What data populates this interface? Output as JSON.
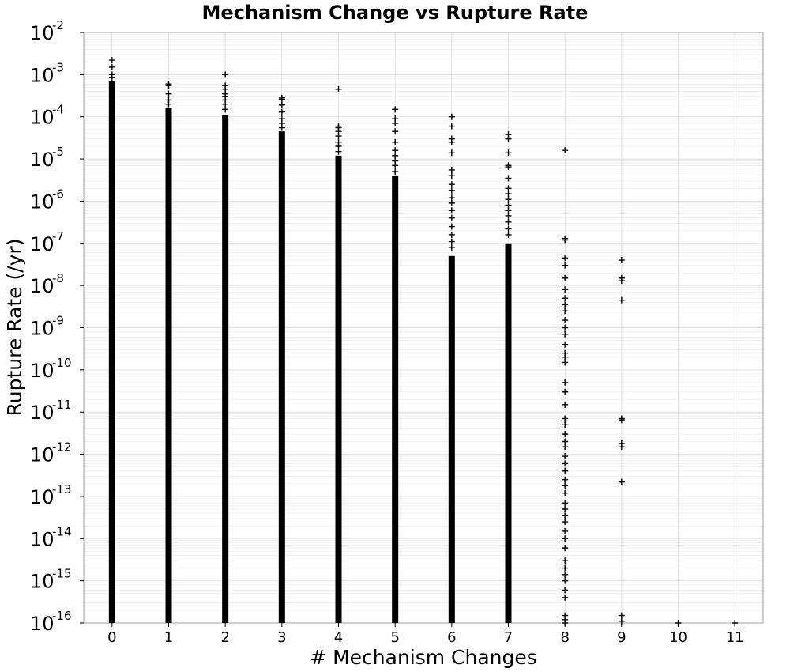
{
  "chart_data": {
    "type": "scatter",
    "title": "Mechanism Change vs Rupture Rate",
    "xlabel": "# Mechanism Changes",
    "ylabel": "Rupture Rate (/yr)",
    "x_ticks": [
      "0",
      "1",
      "2",
      "3",
      "4",
      "5",
      "6",
      "7",
      "8",
      "9",
      "10",
      "11"
    ],
    "xlim": [
      -0.5,
      11.5
    ],
    "ylim": [
      1e-16,
      0.01
    ],
    "y_scale": "log",
    "y_tick_base": "10",
    "y_tick_exponents": [
      "-16",
      "-15",
      "-14",
      "-13",
      "-12",
      "-11",
      "-10",
      "-9",
      "-8",
      "-7",
      "-6",
      "-5",
      "-4",
      "-3",
      "-2"
    ],
    "grid": true,
    "marker": "plus",
    "marker_color": "#000000",
    "columns": [
      {
        "x": 0,
        "solid_range": [
          1e-16,
          0.0007
        ],
        "points": [
          0.0022,
          0.0015,
          0.001,
          0.00085
        ]
      },
      {
        "x": 1,
        "solid_range": [
          1e-16,
          0.00016
        ],
        "points": [
          0.0006,
          0.00055,
          0.00035,
          0.00025,
          0.0002
        ]
      },
      {
        "x": 2,
        "solid_range": [
          1e-16,
          0.00011
        ],
        "points": [
          0.001,
          0.00055,
          0.00045,
          0.00035,
          0.0003,
          0.00025,
          0.0002,
          0.00015
        ]
      },
      {
        "x": 3,
        "solid_range": [
          1e-16,
          4.5e-05
        ],
        "points": [
          0.00028,
          0.00026,
          0.00019,
          0.00013,
          9e-05,
          7e-05,
          5.5e-05
        ]
      },
      {
        "x": 4,
        "solid_range": [
          1e-16,
          1.2e-05
        ],
        "points": [
          0.00045,
          6e-05,
          5.5e-05,
          4.5e-05,
          3.5e-05,
          2.5e-05,
          2e-05,
          1.5e-05
        ]
      },
      {
        "x": 5,
        "solid_range": [
          1e-16,
          4e-06
        ],
        "points": [
          0.00015,
          9e-05,
          7e-05,
          4.5e-05,
          2.5e-05,
          1.6e-05,
          1.2e-05,
          9e-06,
          7e-06,
          5e-06
        ]
      },
      {
        "x": 6,
        "solid_range": [
          1e-16,
          5e-08
        ],
        "points": [
          0.0001,
          6e-05,
          3e-05,
          2.5e-05,
          1.4e-05,
          5.5e-06,
          4e-06,
          2.5e-06,
          1.8e-06,
          1.2e-06,
          9e-07,
          6e-07,
          4e-07,
          2.5e-07,
          1.6e-07,
          1.1e-07,
          8e-08
        ]
      },
      {
        "x": 7,
        "solid_range": [
          1e-16,
          1e-07
        ],
        "points": [
          3.8e-05,
          3e-05,
          1.4e-05,
          7e-06,
          6.5e-06,
          3.5e-06,
          2e-06,
          1.5e-06,
          1.1e-06,
          8e-07,
          6e-07,
          4.5e-07,
          3.2e-07,
          2.2e-07,
          1.6e-07
        ]
      },
      {
        "x": 8,
        "solid_range": null,
        "points": [
          1.6e-05,
          1.3e-07,
          1.2e-07,
          4.5e-08,
          3e-08,
          1.5e-08,
          8e-09,
          5e-09,
          3.5e-09,
          2.5e-09,
          1.5e-09,
          1e-09,
          7e-10,
          4e-10,
          2.5e-10,
          2e-10,
          1.5e-10,
          5e-11,
          3e-11,
          1.5e-11,
          7e-12,
          5e-12,
          3e-12,
          2e-12,
          1.5e-12,
          9e-13,
          6e-13,
          4e-13,
          2.5e-13,
          1.8e-13,
          1.2e-13,
          7e-14,
          5e-14,
          3.5e-14,
          2.5e-14,
          1.5e-14,
          1e-14,
          6e-15,
          3e-15,
          2e-15,
          1.4e-15,
          1e-15,
          6e-16,
          4e-16,
          1.5e-16,
          1.2e-16,
          1e-16
        ]
      },
      {
        "x": 9,
        "solid_range": null,
        "points": [
          4e-08,
          1.5e-08,
          1.3e-08,
          4.5e-09,
          7e-12,
          6.5e-12,
          1.8e-12,
          1.5e-12,
          2.2e-13,
          1.5e-16,
          1.1e-16
        ]
      },
      {
        "x": 10,
        "solid_range": null,
        "points": [
          1e-16
        ]
      },
      {
        "x": 11,
        "solid_range": null,
        "points": [
          1e-16
        ]
      }
    ]
  }
}
